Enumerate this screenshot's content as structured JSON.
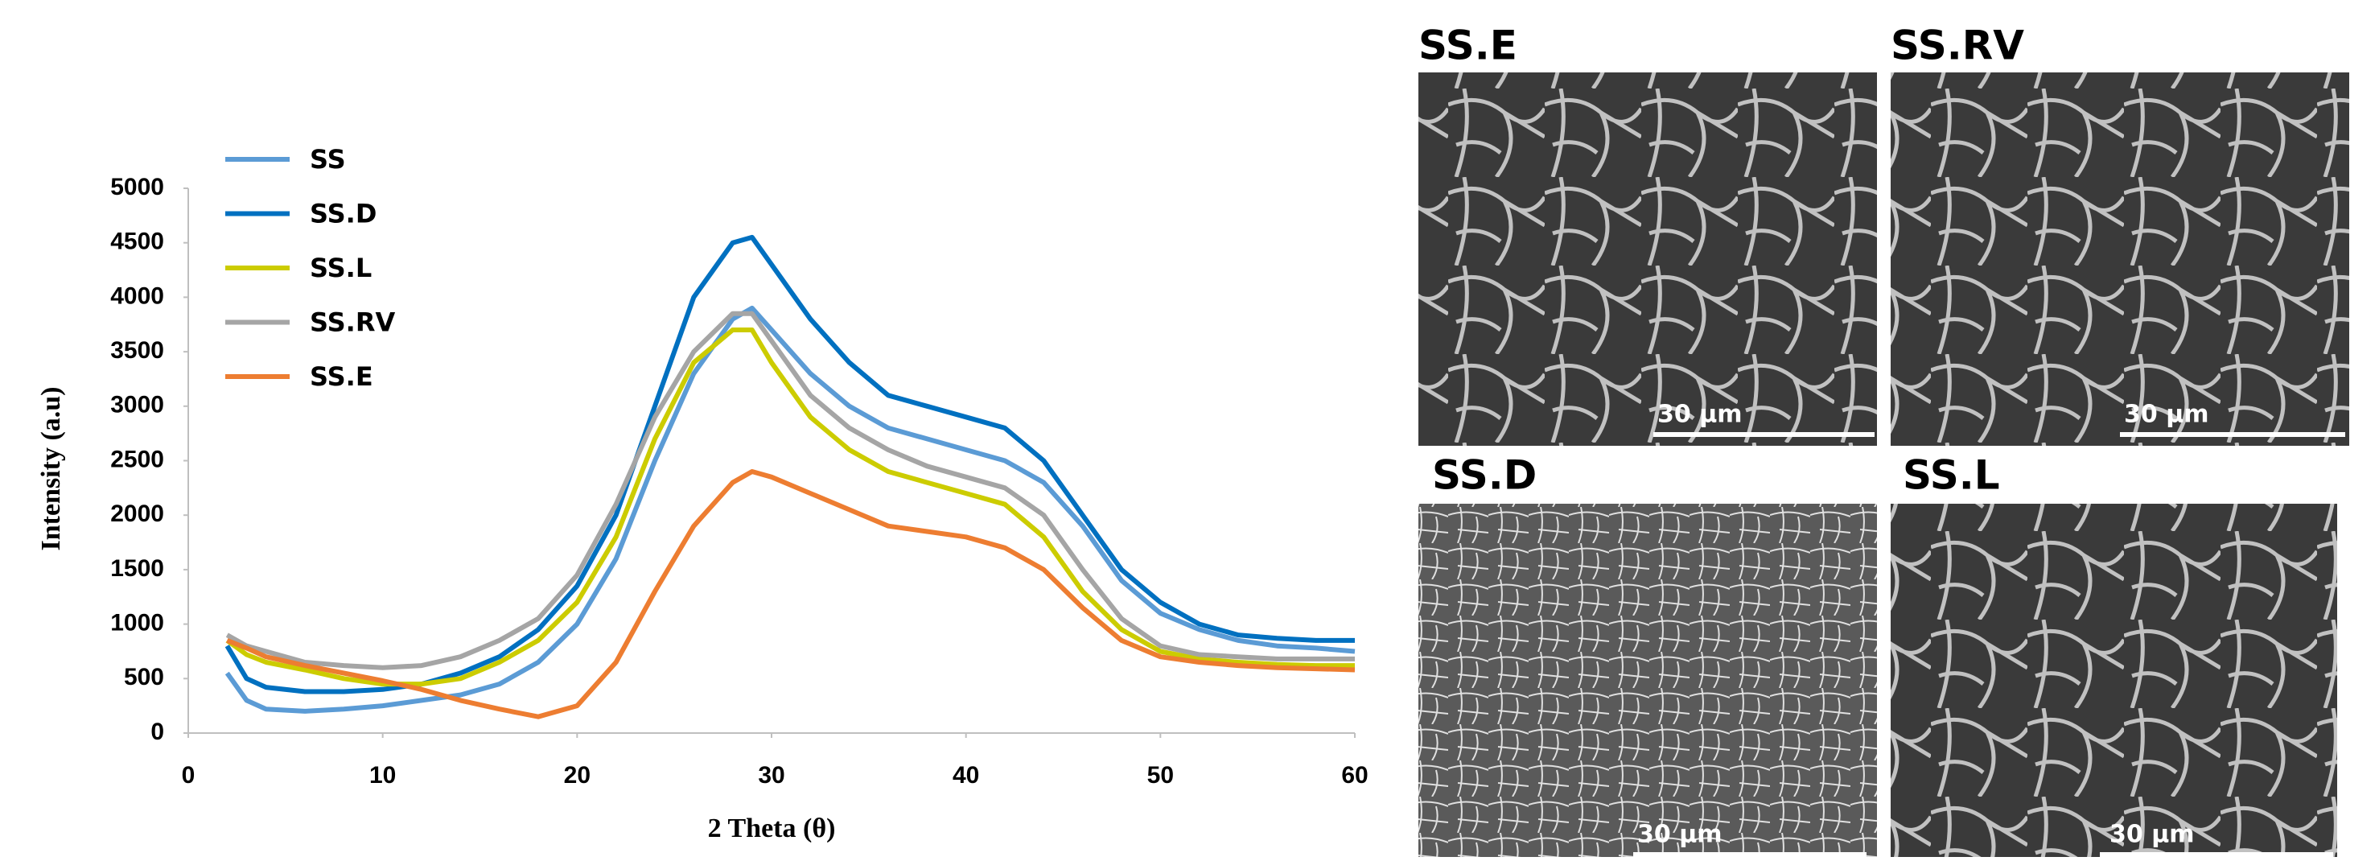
{
  "chart_data": {
    "type": "line",
    "x_label": "2 Theta (θ)",
    "y_label": "Intensity (a.u)",
    "xlim": [
      0,
      60
    ],
    "xticks": [
      0,
      10,
      20,
      30,
      40,
      50,
      60
    ],
    "ylim": [
      0,
      5000
    ],
    "yticks": [
      0,
      500,
      1000,
      1500,
      2000,
      2500,
      3000,
      3500,
      4000,
      4500,
      5000
    ],
    "legend": "upper left",
    "x": [
      2,
      3,
      4,
      6,
      8,
      10,
      12,
      14,
      16,
      18,
      20,
      22,
      24,
      26,
      28,
      29,
      30,
      32,
      34,
      36,
      38,
      40,
      42,
      44,
      46,
      48,
      50,
      52,
      54,
      56,
      58,
      60
    ],
    "series": [
      {
        "name": "SS",
        "color": "#5b9bd5",
        "values": [
          550,
          300,
          220,
          200,
          220,
          250,
          300,
          350,
          450,
          650,
          1000,
          1600,
          2500,
          3300,
          3800,
          3900,
          3700,
          3300,
          3000,
          2800,
          2700,
          2600,
          2500,
          2300,
          1900,
          1400,
          1100,
          950,
          850,
          800,
          780,
          750
        ]
      },
      {
        "name": "SS.D",
        "color": "#0070c0",
        "values": [
          800,
          500,
          420,
          380,
          380,
          400,
          450,
          550,
          700,
          950,
          1350,
          2000,
          3000,
          4000,
          4500,
          4550,
          4300,
          3800,
          3400,
          3100,
          3000,
          2900,
          2800,
          2500,
          2000,
          1500,
          1200,
          1000,
          900,
          870,
          850,
          850
        ]
      },
      {
        "name": "SS.L",
        "color": "#cccc00",
        "values": [
          850,
          720,
          650,
          580,
          500,
          450,
          450,
          500,
          650,
          850,
          1200,
          1800,
          2700,
          3400,
          3700,
          3700,
          3400,
          2900,
          2600,
          2400,
          2300,
          2200,
          2100,
          1800,
          1300,
          950,
          750,
          680,
          650,
          630,
          620,
          620
        ]
      },
      {
        "name": "SS.RV",
        "color": "#a5a5a5",
        "values": [
          900,
          800,
          750,
          650,
          620,
          600,
          620,
          700,
          850,
          1050,
          1450,
          2100,
          2900,
          3500,
          3850,
          3850,
          3600,
          3100,
          2800,
          2600,
          2450,
          2350,
          2250,
          2000,
          1500,
          1050,
          800,
          720,
          700,
          680,
          680,
          680
        ]
      },
      {
        "name": "SS.E",
        "color": "#ed7d31",
        "values": [
          850,
          780,
          700,
          620,
          550,
          480,
          400,
          300,
          220,
          150,
          250,
          650,
          1300,
          1900,
          2300,
          2400,
          2350,
          2200,
          2050,
          1900,
          1850,
          1800,
          1700,
          1500,
          1150,
          850,
          700,
          650,
          620,
          600,
          590,
          580
        ]
      }
    ]
  },
  "images": [
    {
      "label": "SS.E",
      "scale_bar": "30 µm"
    },
    {
      "label": "SS.RV",
      "scale_bar": "30 µm"
    },
    {
      "label": "SS.D",
      "scale_bar": "30 µm"
    },
    {
      "label": "SS.L",
      "scale_bar": "30 µm"
    }
  ]
}
